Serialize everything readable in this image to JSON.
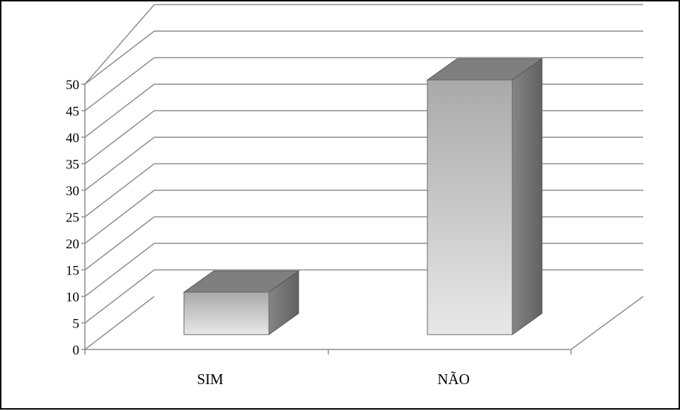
{
  "chart_data": {
    "type": "bar",
    "style": "3d-column",
    "categories": [
      "SIM",
      "NÃO"
    ],
    "values": [
      8,
      48
    ],
    "ylim": [
      0,
      50
    ],
    "ytick_step": 5,
    "yticks": [
      "0",
      "5",
      "10",
      "15",
      "20",
      "25",
      "30",
      "35",
      "40",
      "45",
      "50"
    ],
    "grid": true,
    "legend": "none",
    "colors": {
      "bar_front_top": "#a9a9a9",
      "bar_front_bottom": "#e8e8e8",
      "bar_top": "#7f7f7f",
      "bar_side": "#6f6f6f",
      "grid": "#8c8c8c",
      "axis": "#8c8c8c"
    }
  }
}
